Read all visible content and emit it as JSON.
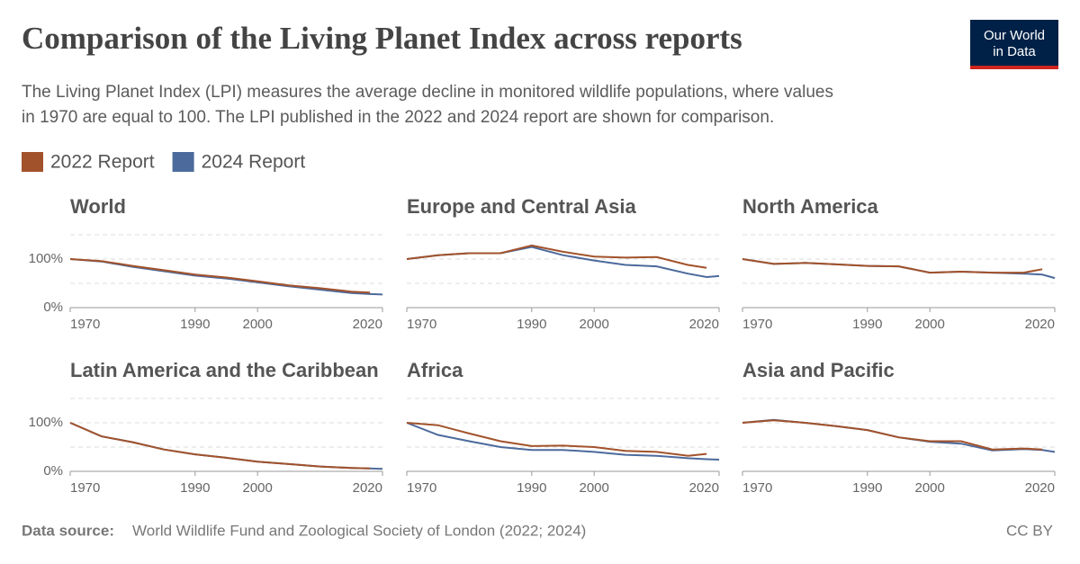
{
  "title": "Comparison of the Living Planet Index across reports",
  "subtitle": [
    "The Living Planet Index (LPI) measures the average decline in monitored wildlife populations, where values",
    "in 1970 are equal to 100. The LPI published in the 2022 and 2024 report are shown for comparison."
  ],
  "logo": [
    "Our World",
    "in Data"
  ],
  "source_label": "Data source:",
  "source": "World Wildlife Fund and Zoological Society of London (2022; 2024)",
  "license": "CC BY",
  "chart_data": [
    {
      "type": "line",
      "title": "World",
      "x": [
        1970,
        1975,
        1980,
        1985,
        1990,
        1995,
        2000,
        2005,
        2010,
        2015,
        2018,
        2020
      ],
      "series": [
        {
          "name": "2022 Report",
          "color": "#a2522b",
          "values": [
            100,
            96,
            86,
            77,
            68,
            62,
            54,
            46,
            40,
            33,
            31,
            null
          ]
        },
        {
          "name": "2024 Report",
          "color": "#4c6a9c",
          "values": [
            100,
            95,
            84,
            75,
            66,
            60,
            52,
            44,
            37,
            30,
            28,
            27
          ]
        }
      ],
      "xlim": [
        1970,
        2020
      ],
      "xticks": [
        1970,
        1990,
        2000,
        2020
      ],
      "ylim": [
        0,
        150
      ],
      "yticks": [
        {
          "value": 0,
          "label": "0%"
        },
        {
          "value": 100,
          "label": "100%"
        }
      ],
      "minor_yticks": [
        50,
        150
      ]
    },
    {
      "type": "line",
      "title": "Europe and Central Asia",
      "x": [
        1970,
        1975,
        1980,
        1985,
        1990,
        1995,
        2000,
        2005,
        2010,
        2015,
        2018,
        2020
      ],
      "series": [
        {
          "name": "2022 Report",
          "color": "#a2522b",
          "values": [
            100,
            108,
            112,
            112,
            128,
            115,
            105,
            103,
            104,
            88,
            82,
            null
          ]
        },
        {
          "name": "2024 Report",
          "color": "#4c6a9c",
          "values": [
            100,
            108,
            112,
            112,
            125,
            108,
            97,
            88,
            85,
            70,
            63,
            65
          ]
        }
      ],
      "xlim": [
        1970,
        2020
      ],
      "xticks": [
        1970,
        1990,
        2000,
        2020
      ],
      "ylim": [
        0,
        150
      ],
      "yticks": [
        0,
        100
      ],
      "minor_yticks": [
        50,
        150
      ]
    },
    {
      "type": "line",
      "title": "North America",
      "x": [
        1970,
        1975,
        1980,
        1985,
        1990,
        1995,
        2000,
        2005,
        2010,
        2015,
        2018,
        2020
      ],
      "series": [
        {
          "name": "2022 Report",
          "color": "#a2522b",
          "values": [
            100,
            90,
            92,
            89,
            86,
            85,
            72,
            74,
            72,
            72,
            79,
            null
          ]
        },
        {
          "name": "2024 Report",
          "color": "#4c6a9c",
          "values": [
            100,
            90,
            92,
            89,
            86,
            85,
            72,
            74,
            72,
            70,
            68,
            61
          ]
        }
      ],
      "xlim": [
        1970,
        2020
      ],
      "xticks": [
        1970,
        1990,
        2000,
        2020
      ],
      "ylim": [
        0,
        150
      ],
      "yticks": [
        0,
        100
      ],
      "minor_yticks": [
        50,
        150
      ]
    },
    {
      "type": "line",
      "title": "Latin America and the Caribbean",
      "x": [
        1970,
        1975,
        1980,
        1985,
        1990,
        1995,
        2000,
        2005,
        2010,
        2015,
        2018,
        2020
      ],
      "series": [
        {
          "name": "2022 Report",
          "color": "#a2522b",
          "values": [
            100,
            72,
            60,
            45,
            35,
            28,
            20,
            15,
            10,
            7,
            6,
            null
          ]
        },
        {
          "name": "2024 Report",
          "color": "#4c6a9c",
          "values": [
            100,
            72,
            60,
            45,
            35,
            28,
            20,
            15,
            10,
            7,
            6,
            5
          ]
        }
      ],
      "xlim": [
        1970,
        2020
      ],
      "xticks": [
        1970,
        1990,
        2000,
        2020
      ],
      "ylim": [
        0,
        150
      ],
      "yticks": [
        {
          "value": 0,
          "label": "0%"
        },
        {
          "value": 100,
          "label": "100%"
        }
      ],
      "minor_yticks": [
        50,
        150
      ]
    },
    {
      "type": "line",
      "title": "Africa",
      "x": [
        1970,
        1975,
        1980,
        1985,
        1990,
        1995,
        2000,
        2005,
        2010,
        2015,
        2018,
        2020
      ],
      "series": [
        {
          "name": "2022 Report",
          "color": "#a2522b",
          "values": [
            100,
            95,
            78,
            62,
            52,
            53,
            50,
            42,
            40,
            32,
            36,
            null
          ]
        },
        {
          "name": "2024 Report",
          "color": "#4c6a9c",
          "values": [
            100,
            75,
            62,
            50,
            44,
            44,
            40,
            34,
            32,
            27,
            25,
            24
          ]
        }
      ],
      "xlim": [
        1970,
        2020
      ],
      "xticks": [
        1970,
        1990,
        2000,
        2020
      ],
      "ylim": [
        0,
        150
      ],
      "yticks": [
        0,
        100
      ],
      "minor_yticks": [
        50,
        150
      ]
    },
    {
      "type": "line",
      "title": "Asia and Pacific",
      "x": [
        1970,
        1975,
        1980,
        1985,
        1990,
        1995,
        2000,
        2005,
        2010,
        2015,
        2018,
        2020
      ],
      "series": [
        {
          "name": "2022 Report",
          "color": "#a2522b",
          "values": [
            100,
            105,
            100,
            93,
            85,
            70,
            62,
            62,
            45,
            47,
            45,
            null
          ]
        },
        {
          "name": "2024 Report",
          "color": "#4c6a9c",
          "values": [
            100,
            106,
            100,
            93,
            85,
            70,
            61,
            57,
            43,
            46,
            44,
            40
          ]
        }
      ],
      "xlim": [
        1970,
        2020
      ],
      "xticks": [
        1970,
        1990,
        2000,
        2020
      ],
      "ylim": [
        0,
        150
      ],
      "yticks": [
        0,
        100
      ],
      "minor_yticks": [
        50,
        150
      ]
    }
  ]
}
